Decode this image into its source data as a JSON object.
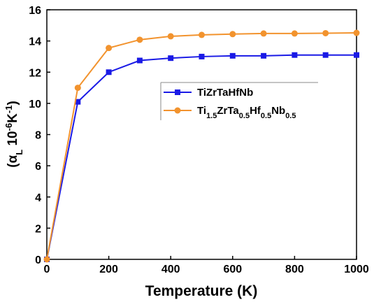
{
  "chart_data": {
    "type": "line",
    "xlabel": "Temperature (K)",
    "ylabel": {
      "parts": [
        {
          "text": "(α",
          "script": "normal"
        },
        {
          "text": "L",
          "script": "sub"
        },
        {
          "text": " 10",
          "script": "normal"
        },
        {
          "text": "-6",
          "script": "sup"
        },
        {
          "text": "K",
          "script": "normal"
        },
        {
          "text": "-1",
          "script": "sup"
        },
        {
          "text": ")",
          "script": "normal"
        }
      ]
    },
    "x": [
      0,
      100,
      200,
      300,
      400,
      500,
      600,
      700,
      800,
      900,
      1000
    ],
    "series": [
      {
        "name": "TiZrTaHfNb",
        "color": "#1a1ae6",
        "marker": "square",
        "values": [
          0,
          10.1,
          12.0,
          12.75,
          12.9,
          13.0,
          13.05,
          13.05,
          13.1,
          13.1,
          13.1
        ]
      },
      {
        "name": "Ti1.5ZrTa0.5Hf0.5Nb0.5",
        "color": "#f2932e",
        "marker": "circle",
        "values": [
          0,
          11.0,
          13.55,
          14.08,
          14.3,
          14.39,
          14.44,
          14.48,
          14.48,
          14.5,
          14.52
        ]
      }
    ],
    "xlim": [
      0,
      1000
    ],
    "xticks": [
      0,
      200,
      400,
      600,
      800,
      1000
    ],
    "ylim": [
      0,
      16
    ],
    "yticks": [
      0,
      2,
      4,
      6,
      8,
      10,
      12,
      14,
      16
    ],
    "grid": false,
    "legend": "upper right"
  }
}
